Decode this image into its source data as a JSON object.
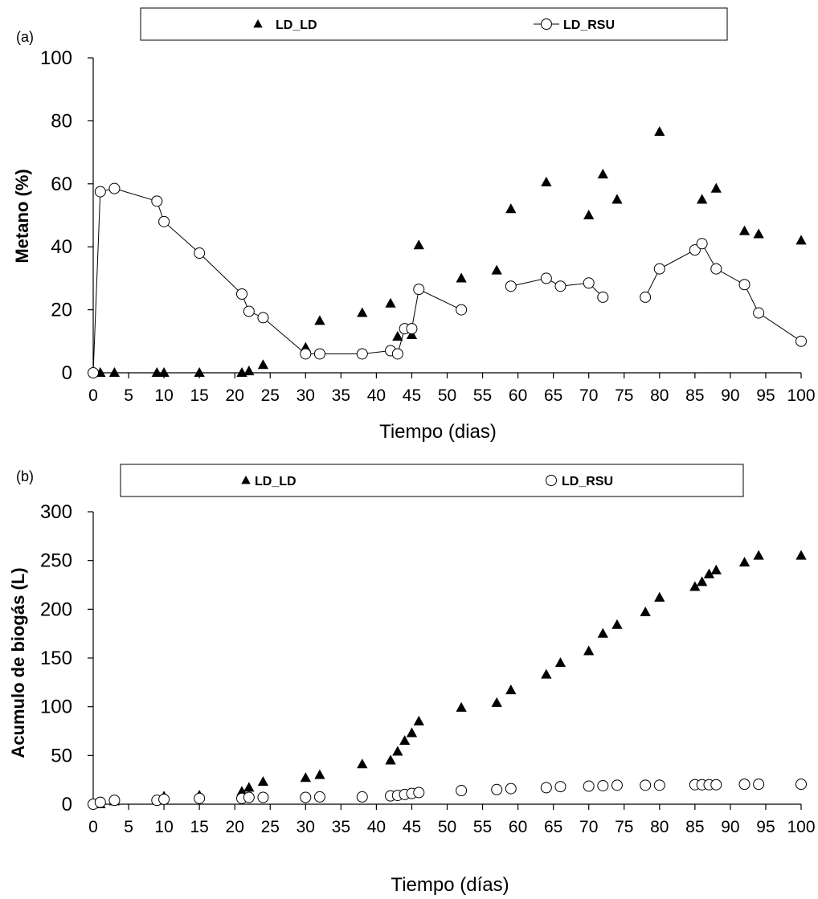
{
  "chart_data": [
    {
      "panel_label": "(a)",
      "type": "scatter",
      "xlabel": "Tiempo (dias)",
      "ylabel": "Metano (%)",
      "xlim": [
        0,
        100
      ],
      "ylim": [
        0,
        100
      ],
      "xticks": [
        0,
        5,
        10,
        15,
        20,
        25,
        30,
        35,
        40,
        45,
        50,
        55,
        60,
        65,
        70,
        75,
        80,
        85,
        90,
        95,
        100
      ],
      "yticks": [
        0,
        20,
        40,
        60,
        80,
        100
      ],
      "grid": false,
      "legend_position": "top",
      "series": [
        {
          "name": "LD_LD",
          "marker": "filled-triangle",
          "connected": false,
          "color": "#000000",
          "points": [
            [
              1,
              0
            ],
            [
              3,
              0
            ],
            [
              9,
              0
            ],
            [
              10,
              0
            ],
            [
              15,
              0
            ],
            [
              21,
              0
            ],
            [
              22,
              0.5
            ],
            [
              24,
              2.5
            ],
            [
              30,
              8
            ],
            [
              32,
              16.5
            ],
            [
              38,
              19
            ],
            [
              42,
              22
            ],
            [
              43,
              11.5
            ],
            [
              45,
              12
            ],
            [
              46,
              40.5
            ],
            [
              52,
              30
            ],
            [
              57,
              32.5
            ],
            [
              59,
              52
            ],
            [
              64,
              60.5
            ],
            [
              70,
              50
            ],
            [
              72,
              63
            ],
            [
              74,
              55
            ],
            [
              80,
              76.5
            ],
            [
              86,
              55
            ],
            [
              88,
              58.5
            ],
            [
              92,
              45
            ],
            [
              94,
              44
            ],
            [
              100,
              42
            ]
          ]
        },
        {
          "name": "LD_RSU",
          "marker": "open-circle",
          "connected": true,
          "color": "#000000",
          "segments": [
            [
              [
                0,
                0
              ],
              [
                1,
                57.5
              ],
              [
                3,
                58.5
              ],
              [
                9,
                54.5
              ],
              [
                10,
                48
              ],
              [
                15,
                38
              ],
              [
                21,
                25
              ],
              [
                22,
                19.5
              ],
              [
                24,
                17.5
              ],
              [
                30,
                6
              ],
              [
                32,
                6
              ],
              [
                38,
                6
              ],
              [
                42,
                7
              ],
              [
                43,
                6
              ],
              [
                44,
                14
              ],
              [
                45,
                14
              ],
              [
                46,
                26.5
              ],
              [
                52,
                20
              ]
            ],
            [
              [
                59,
                27.5
              ],
              [
                64,
                30
              ],
              [
                66,
                27.5
              ],
              [
                70,
                28.5
              ],
              [
                72,
                24
              ]
            ],
            [
              [
                78,
                24
              ],
              [
                80,
                33
              ],
              [
                85,
                39
              ],
              [
                86,
                41
              ],
              [
                88,
                33
              ],
              [
                92,
                28
              ],
              [
                94,
                19
              ],
              [
                100,
                10
              ]
            ]
          ]
        }
      ]
    },
    {
      "panel_label": "(b)",
      "type": "scatter",
      "xlabel": "Tiempo (días)",
      "ylabel": "Acumulo de biogás (L)",
      "xlim": [
        0,
        100
      ],
      "ylim": [
        0,
        300
      ],
      "xticks": [
        0,
        5,
        10,
        15,
        20,
        25,
        30,
        35,
        40,
        45,
        50,
        55,
        60,
        65,
        70,
        75,
        80,
        85,
        90,
        95,
        100
      ],
      "yticks": [
        0,
        50,
        100,
        150,
        200,
        250,
        300
      ],
      "grid": false,
      "legend_position": "top",
      "series": [
        {
          "name": "LD_LD",
          "marker": "filled-triangle",
          "connected": false,
          "color": "#000000",
          "points": [
            [
              1,
              0
            ],
            [
              3,
              3
            ],
            [
              10,
              8
            ],
            [
              15,
              9
            ],
            [
              21,
              13
            ],
            [
              22,
              17
            ],
            [
              24,
              23
            ],
            [
              30,
              27
            ],
            [
              32,
              30
            ],
            [
              38,
              41
            ],
            [
              42,
              45
            ],
            [
              43,
              54
            ],
            [
              44,
              65
            ],
            [
              45,
              73
            ],
            [
              46,
              85
            ],
            [
              52,
              99
            ],
            [
              57,
              104
            ],
            [
              59,
              117
            ],
            [
              64,
              133
            ],
            [
              66,
              145
            ],
            [
              70,
              157
            ],
            [
              72,
              175
            ],
            [
              74,
              184
            ],
            [
              78,
              197
            ],
            [
              80,
              212
            ],
            [
              85,
              223
            ],
            [
              86,
              228
            ],
            [
              87,
              236
            ],
            [
              88,
              240
            ],
            [
              92,
              248
            ],
            [
              94,
              255
            ],
            [
              100,
              255
            ]
          ]
        },
        {
          "name": "LD_RSU",
          "marker": "open-circle",
          "connected": false,
          "color": "#000000",
          "points": [
            [
              0,
              0
            ],
            [
              1,
              2
            ],
            [
              3,
              4
            ],
            [
              9,
              4
            ],
            [
              10,
              5
            ],
            [
              15,
              6
            ],
            [
              21,
              6
            ],
            [
              22,
              7
            ],
            [
              24,
              7
            ],
            [
              30,
              7
            ],
            [
              32,
              7.5
            ],
            [
              38,
              7.5
            ],
            [
              42,
              8.5
            ],
            [
              43,
              9
            ],
            [
              44,
              10
            ],
            [
              45,
              11
            ],
            [
              46,
              12
            ],
            [
              52,
              14
            ],
            [
              57,
              15
            ],
            [
              59,
              16
            ],
            [
              64,
              17
            ],
            [
              66,
              18
            ],
            [
              70,
              18.5
            ],
            [
              72,
              19
            ],
            [
              74,
              19.5
            ],
            [
              78,
              19.5
            ],
            [
              80,
              19.5
            ],
            [
              85,
              20
            ],
            [
              86,
              20
            ],
            [
              87,
              20
            ],
            [
              88,
              20
            ],
            [
              92,
              20.5
            ],
            [
              94,
              20.5
            ],
            [
              100,
              20.5
            ]
          ]
        }
      ]
    }
  ]
}
